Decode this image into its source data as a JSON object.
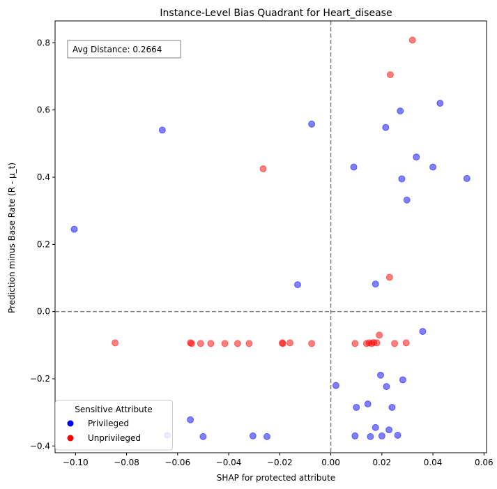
{
  "chart_data": {
    "type": "scatter",
    "title": "Instance-Level Bias Quadrant for Heart_disease",
    "xlabel": "SHAP for protected attribute",
    "ylabel": "Prediction minus Base Rate (R - μ_t)",
    "xlim": [
      -0.108,
      0.061
    ],
    "ylim": [
      -0.42,
      0.865
    ],
    "xticks": [
      -0.1,
      -0.08,
      -0.06,
      -0.04,
      -0.02,
      0.0,
      0.02,
      0.04,
      0.06
    ],
    "xtick_labels": [
      "−0.10",
      "−0.08",
      "−0.06",
      "−0.04",
      "−0.02",
      "0.00",
      "0.02",
      "0.04",
      "0.06"
    ],
    "yticks": [
      -0.4,
      -0.2,
      0.0,
      0.2,
      0.4,
      0.6,
      0.8
    ],
    "ytick_labels": [
      "−0.4",
      "−0.2",
      "0.0",
      "0.2",
      "0.4",
      "0.6",
      "0.8"
    ],
    "annotation": "Avg Distance: 0.2664",
    "reference_lines": {
      "x": 0.0,
      "y": 0.0
    },
    "grid": false,
    "legend": {
      "title": "Sensitive Attribute",
      "placement": "lower-left"
    },
    "series": [
      {
        "name": "Privileged",
        "color": "#0000ff",
        "points": [
          [
            -0.1005,
            0.245
          ],
          [
            -0.066,
            0.54
          ],
          [
            -0.0075,
            0.558
          ],
          [
            -0.013,
            0.08
          ],
          [
            0.009,
            0.43
          ],
          [
            0.0175,
            0.082
          ],
          [
            0.0215,
            0.548
          ],
          [
            0.0272,
            0.597
          ],
          [
            0.0278,
            0.395
          ],
          [
            0.0298,
            0.332
          ],
          [
            0.0335,
            0.46
          ],
          [
            0.04,
            0.43
          ],
          [
            0.0428,
            0.62
          ],
          [
            0.0533,
            0.396
          ],
          [
            0.036,
            -0.059
          ],
          [
            0.002,
            -0.22
          ],
          [
            0.0195,
            -0.189
          ],
          [
            0.0218,
            -0.223
          ],
          [
            0.0282,
            -0.203
          ],
          [
            0.01,
            -0.285
          ],
          [
            0.0145,
            -0.275
          ],
          [
            0.024,
            -0.285
          ],
          [
            -0.055,
            -0.322
          ],
          [
            -0.064,
            -0.368
          ],
          [
            -0.05,
            -0.372
          ],
          [
            -0.0305,
            -0.37
          ],
          [
            -0.025,
            -0.372
          ],
          [
            0.0095,
            -0.37
          ],
          [
            0.0155,
            -0.372
          ],
          [
            0.0175,
            -0.345
          ],
          [
            0.02,
            -0.37
          ],
          [
            0.0228,
            -0.352
          ],
          [
            0.0262,
            -0.368
          ]
        ]
      },
      {
        "name": "Unprivileged",
        "color": "#ff0000",
        "points": [
          [
            0.032,
            0.808
          ],
          [
            0.0233,
            0.705
          ],
          [
            -0.0265,
            0.425
          ],
          [
            0.023,
            0.102
          ],
          [
            0.019,
            -0.07
          ],
          [
            -0.0845,
            -0.093
          ],
          [
            -0.055,
            -0.093
          ],
          [
            -0.0545,
            -0.095
          ],
          [
            -0.051,
            -0.095
          ],
          [
            -0.047,
            -0.095
          ],
          [
            -0.0415,
            -0.095
          ],
          [
            -0.0365,
            -0.095
          ],
          [
            -0.032,
            -0.095
          ],
          [
            -0.019,
            -0.093
          ],
          [
            -0.0188,
            -0.095
          ],
          [
            -0.016,
            -0.093
          ],
          [
            -0.0075,
            -0.095
          ],
          [
            0.0095,
            -0.095
          ],
          [
            0.014,
            -0.095
          ],
          [
            0.015,
            -0.093
          ],
          [
            0.016,
            -0.095
          ],
          [
            0.0168,
            -0.092
          ],
          [
            0.018,
            -0.093
          ],
          [
            0.025,
            -0.095
          ],
          [
            0.0295,
            -0.093
          ]
        ]
      }
    ]
  }
}
